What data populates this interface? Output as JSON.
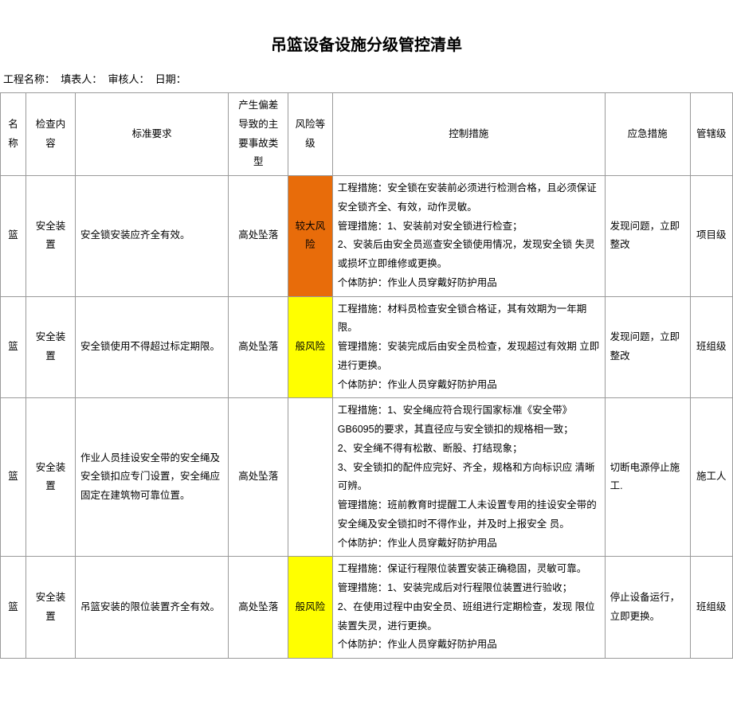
{
  "title": "吊篮设备设施分级管控清单",
  "meta": {
    "project_label": "工程名称：",
    "filler_label": "填表人：",
    "reviewer_label": "审核人：",
    "date_label": "日期："
  },
  "columns": {
    "name": "名称",
    "check": "检查内容",
    "standard": "标准要求",
    "accident": "产生偏差导致的主要事故类型",
    "risk": "风险等级",
    "control": "控制措施",
    "emergency": "应急措施",
    "level": "管辖级"
  },
  "risk_colors": {
    "major": "#e86c0a",
    "general": "#ffff00"
  },
  "rows": [
    {
      "name": "篮",
      "check": "安全装置",
      "standard": "安全锁安装应齐全有效。",
      "accident": "高处坠落",
      "risk_label": "较大风险",
      "risk_color": "#e86c0a",
      "control": "工程措施：安全锁在安装前必须进行检测合格，且必须保证安全锁齐全、有效，动作灵敏。\n管理措施：1、安装前对安全锁进行检查；\n2、安装后由安全员巡查安全锁使用情况，发现安全锁 失灵或损坏立即维修或更换。\n个体防护：作业人员穿戴好防护用品",
      "emergency": "发现问题，立即整改",
      "level": "项目级"
    },
    {
      "name": "篮",
      "check": "安全装置",
      "standard": "安全锁使用不得超过标定期限。",
      "accident": "高处坠落",
      "risk_label": "般风险",
      "risk_color": "#ffff00",
      "control": "工程措施：材料员检查安全锁合格证，其有效期为一年期限。\n管理措施：安装完成后由安全员检查，发现超过有效期 立即进行更换。\n个体防护：作业人员穿戴好防护用品",
      "emergency": "发现问题，立即整改",
      "level": "班组级"
    },
    {
      "name": "篮",
      "check": "安全装置",
      "standard": "作业人员挂设安全带的安全绳及安全锁扣应专门设置，安全绳应固定在建筑物可靠位置。",
      "accident": "高处坠落",
      "risk_label": "",
      "risk_color": "",
      "control": "工程措施：1、安全绳应符合现行国家标准《安全带》GB6095的要求，其直径应与安全锁扣的规格相一致；\n2、安全绳不得有松散、断股、打结现象；\n3、安全锁扣的配件应完好、齐全，规格和方向标识应 清晰可辨。\n管理措施：班前教育时提醒工人未设置专用的挂设安全带的安全绳及安全锁扣时不得作业，并及时上报安全 员。\n个体防护：作业人员穿戴好防护用品",
      "emergency": "切断电源停止施工.",
      "level": "施工人"
    },
    {
      "name": "篮",
      "check": "安全装置",
      "standard": "吊篮安装的限位装置齐全有效。",
      "accident": "高处坠落",
      "risk_label": "般风险",
      "risk_color": "#ffff00",
      "control": "工程措施：保证行程限位装置安装正确稳固，灵敏可靠。\n管理措施：1、安装完成后对行程限位装置进行验收；\n2、在使用过程中由安全员、班组进行定期检查，发现 限位装置失灵，进行更换。\n个体防护：作业人员穿戴好防护用品",
      "emergency": "停止设备运行，立即更换。",
      "level": "班组级"
    }
  ]
}
